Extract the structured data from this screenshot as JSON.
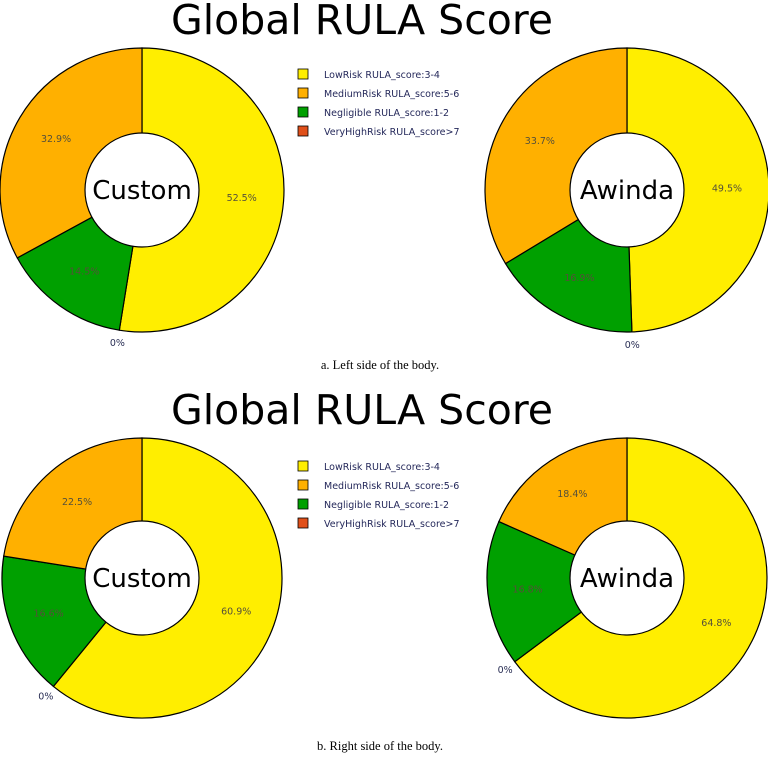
{
  "chart_data": [
    {
      "type": "pie",
      "title": "Global RULA Score",
      "caption": "a. Left side of the body.",
      "legend": {
        "placement": "center",
        "entries": [
          {
            "label": "LowRisk RULA_score:3-4",
            "color": "#ffee00"
          },
          {
            "label": "MediumRisk RULA_score:5-6",
            "color": "#ffb000"
          },
          {
            "label": "Negligible RULA_score:1-2",
            "color": "#00a000"
          },
          {
            "label": "VeryHighRisk RULA_score>7",
            "color": "#e0501a"
          }
        ]
      },
      "pies": [
        {
          "center_label": "Custom",
          "slices": [
            {
              "category": "LowRisk RULA_score:3-4",
              "value": 52.5,
              "label": "52.5%"
            },
            {
              "category": "VeryHighRisk RULA_score>7",
              "value": 0,
              "label": "0%"
            },
            {
              "category": "Negligible RULA_score:1-2",
              "value": 14.5,
              "label": "14.5%"
            },
            {
              "category": "MediumRisk RULA_score:5-6",
              "value": 32.9,
              "label": "32.9%"
            }
          ]
        },
        {
          "center_label": "Awinda",
          "slices": [
            {
              "category": "LowRisk RULA_score:3-4",
              "value": 49.5,
              "label": "49.5%"
            },
            {
              "category": "VeryHighRisk RULA_score>7",
              "value": 0,
              "label": "0%"
            },
            {
              "category": "Negligible RULA_score:1-2",
              "value": 16.9,
              "label": "16.9%"
            },
            {
              "category": "MediumRisk RULA_score:5-6",
              "value": 33.7,
              "label": "33.7%"
            }
          ]
        }
      ]
    },
    {
      "type": "pie",
      "title": "Global RULA Score",
      "caption": "b. Right side of the body.",
      "legend": {
        "placement": "center",
        "entries": [
          {
            "label": "LowRisk RULA_score:3-4",
            "color": "#ffee00"
          },
          {
            "label": "MediumRisk RULA_score:5-6",
            "color": "#ffb000"
          },
          {
            "label": "Negligible RULA_score:1-2",
            "color": "#00a000"
          },
          {
            "label": "VeryHighRisk RULA_score>7",
            "color": "#e0501a"
          }
        ]
      },
      "pies": [
        {
          "center_label": "Custom",
          "slices": [
            {
              "category": "LowRisk RULA_score:3-4",
              "value": 60.9,
              "label": "60.9%"
            },
            {
              "category": "VeryHighRisk RULA_score>7",
              "value": 0,
              "label": "0%"
            },
            {
              "category": "Negligible RULA_score:1-2",
              "value": 16.6,
              "label": "16.6%"
            },
            {
              "category": "MediumRisk RULA_score:5-6",
              "value": 22.5,
              "label": "22.5%"
            }
          ]
        },
        {
          "center_label": "Awinda",
          "slices": [
            {
              "category": "LowRisk RULA_score:3-4",
              "value": 64.8,
              "label": "64.8%"
            },
            {
              "category": "VeryHighRisk RULA_score>7",
              "value": 0,
              "label": "0%"
            },
            {
              "category": "Negligible RULA_score:1-2",
              "value": 16.8,
              "label": "16.8%"
            },
            {
              "category": "MediumRisk RULA_score:5-6",
              "value": 18.4,
              "label": "18.4%"
            }
          ]
        }
      ]
    }
  ]
}
